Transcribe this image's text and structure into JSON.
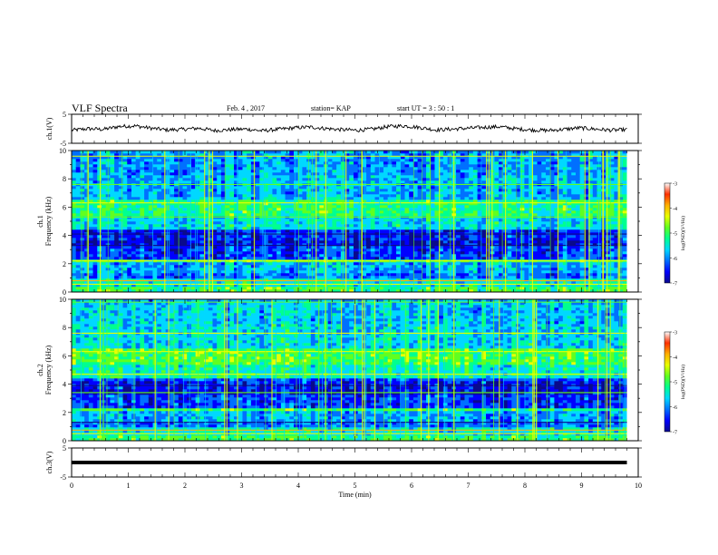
{
  "header": {
    "title": "VLF Spectra",
    "date": "Feb. 4 , 2017",
    "station": "station= KAP",
    "start": "start UT =  3 : 50 : 1"
  },
  "chart_data": [
    {
      "type": "line",
      "panel": "ch1-voltage",
      "ylabel": "ch.1(V)",
      "yticks": [
        "5",
        "-5"
      ],
      "ylim": [
        -5,
        5
      ],
      "x_range_min": [
        0,
        9.8
      ],
      "series_description_values": [
        1.5,
        2.0,
        1.8,
        2.8,
        3.0,
        2.2,
        1.6,
        1.8,
        2.2,
        1.4,
        1.7,
        1.9,
        1.3,
        1.8,
        2.3,
        2.6,
        2.1,
        1.7,
        1.5,
        1.9,
        2.8,
        3.0,
        2.4,
        1.6,
        1.9,
        2.2,
        2.5,
        2.7,
        2.0,
        1.6,
        1.4,
        1.8,
        2.3,
        1.9,
        1.5,
        1.7
      ],
      "line_color": "#000000"
    },
    {
      "type": "heatmap",
      "panel": "ch1-spectrogram",
      "ylabel": "ch.1\nFrequency (kHz)",
      "yticks": [
        "0",
        "2",
        "4",
        "6",
        "8",
        "10"
      ],
      "ylim": [
        0,
        10
      ],
      "xlim": [
        0,
        10
      ],
      "colorbar": {
        "label": "log(PSD)(V²/Hz)",
        "ticks": [
          "-3",
          "-4",
          "-5",
          "-6",
          "-7"
        ],
        "range": [
          -7,
          -3
        ]
      }
    },
    {
      "type": "heatmap",
      "panel": "ch2-spectrogram",
      "ylabel": "ch.2\nFrequency (kHz)",
      "yticks": [
        "0",
        "2",
        "4",
        "6",
        "8",
        "10"
      ],
      "ylim": [
        0,
        10
      ],
      "xlim": [
        0,
        10
      ],
      "colorbar": {
        "label": "log(PSD)(V²/Hz)",
        "ticks": [
          "-3",
          "-4",
          "-5",
          "-6",
          "-7"
        ],
        "range": [
          -7,
          -3
        ]
      }
    },
    {
      "type": "line",
      "panel": "ch3-voltage",
      "ylabel": "ch.3(V)",
      "yticks": [
        "5",
        "-5"
      ],
      "ylim": [
        -5,
        5
      ],
      "x_range_min": [
        0,
        9.8
      ],
      "constant_value": 0,
      "line_color": "#000000"
    }
  ],
  "xaxis": {
    "label": "Time (min)",
    "ticks": [
      "0",
      "1",
      "2",
      "3",
      "4",
      "5",
      "6",
      "7",
      "8",
      "9",
      "10"
    ],
    "range": [
      0,
      10
    ]
  },
  "colors": {
    "colormap": [
      "#0a0a8c",
      "#0000ff",
      "#0070ff",
      "#00d8ff",
      "#00ff90",
      "#60ff20",
      "#e8ff00",
      "#ffb000",
      "#ff3000",
      "#ffffff"
    ]
  }
}
